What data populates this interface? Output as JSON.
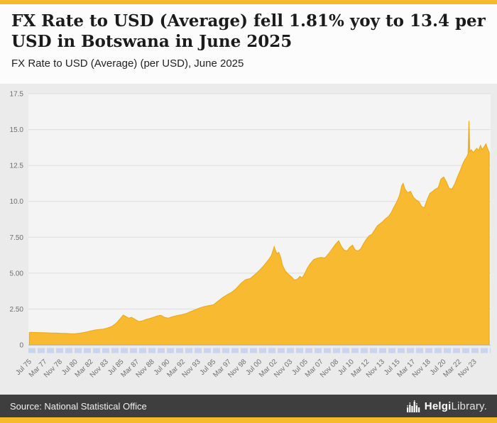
{
  "accent_color": "#F6BA2C",
  "header": {
    "title": "FX Rate to USD (Average) fell 1.81% yoy to 13.4 per USD in Botswana in June 2025",
    "subtitle": "FX Rate to USD (Average) (per USD), June 2025"
  },
  "footer": {
    "source": "Source: National Statistical Office",
    "logo_icon": "helgi-building-icon",
    "logo_helgi": "Helgi",
    "logo_library": "Library."
  },
  "chart_data": {
    "type": "area",
    "title": "FX Rate to USD (Average) (per USD), June 2025",
    "xlabel": "",
    "ylabel": "",
    "xlim": [
      1975.4,
      2025.6
    ],
    "ylim": [
      0,
      17.5
    ],
    "grid": true,
    "legend": "none",
    "yticks": [
      {
        "v": 0,
        "label": "0"
      },
      {
        "v": 2.5,
        "label": "2.50"
      },
      {
        "v": 5,
        "label": "5.00"
      },
      {
        "v": 7.5,
        "label": "7.50"
      },
      {
        "v": 10,
        "label": "10.0"
      },
      {
        "v": 12.5,
        "label": "12.5"
      },
      {
        "v": 15,
        "label": "15.0"
      },
      {
        "v": 17.5,
        "label": "17.5"
      }
    ],
    "xticks": [
      {
        "t": 1975.54,
        "label": "Jul 75"
      },
      {
        "t": 1977.21,
        "label": "Mar 77"
      },
      {
        "t": 1978.87,
        "label": "Nov 78"
      },
      {
        "t": 1980.54,
        "label": "Jul 80"
      },
      {
        "t": 1982.21,
        "label": "Mar 82"
      },
      {
        "t": 1983.87,
        "label": "Nov 83"
      },
      {
        "t": 1985.54,
        "label": "Jul 85"
      },
      {
        "t": 1987.21,
        "label": "Mar 87"
      },
      {
        "t": 1988.87,
        "label": "Nov 88"
      },
      {
        "t": 1990.54,
        "label": "Jul 90"
      },
      {
        "t": 1992.21,
        "label": "Mar 92"
      },
      {
        "t": 1993.87,
        "label": "Nov 93"
      },
      {
        "t": 1995.54,
        "label": "Jul 95"
      },
      {
        "t": 1997.21,
        "label": "Mar 97"
      },
      {
        "t": 1998.87,
        "label": "Nov 98"
      },
      {
        "t": 2000.54,
        "label": "Jul 00"
      },
      {
        "t": 2002.21,
        "label": "Mar 02"
      },
      {
        "t": 2003.87,
        "label": "Nov 03"
      },
      {
        "t": 2005.54,
        "label": "Jul 05"
      },
      {
        "t": 2007.21,
        "label": "Mar 07"
      },
      {
        "t": 2008.87,
        "label": "Nov 08"
      },
      {
        "t": 2010.54,
        "label": "Jul 10"
      },
      {
        "t": 2012.21,
        "label": "Mar 12"
      },
      {
        "t": 2013.87,
        "label": "Nov 13"
      },
      {
        "t": 2015.54,
        "label": "Jul 15"
      },
      {
        "t": 2017.21,
        "label": "Mar 17"
      },
      {
        "t": 2018.87,
        "label": "Nov 18"
      },
      {
        "t": 2020.54,
        "label": "Jul 20"
      },
      {
        "t": 2022.21,
        "label": "Mar 22"
      },
      {
        "t": 2023.87,
        "label": "Nov 23"
      }
    ],
    "series": [
      {
        "name": "FX Rate to USD (Average), Botswana (per USD)",
        "points": [
          [
            1975.5,
            0.87
          ],
          [
            1976.0,
            0.87
          ],
          [
            1976.5,
            0.86
          ],
          [
            1977.0,
            0.85
          ],
          [
            1977.5,
            0.84
          ],
          [
            1978.0,
            0.83
          ],
          [
            1978.5,
            0.83
          ],
          [
            1979.0,
            0.81
          ],
          [
            1979.5,
            0.8
          ],
          [
            1980.0,
            0.78
          ],
          [
            1980.5,
            0.78
          ],
          [
            1981.0,
            0.82
          ],
          [
            1981.5,
            0.87
          ],
          [
            1982.0,
            0.95
          ],
          [
            1982.5,
            1.03
          ],
          [
            1983.0,
            1.07
          ],
          [
            1983.5,
            1.1
          ],
          [
            1984.0,
            1.18
          ],
          [
            1984.5,
            1.3
          ],
          [
            1985.0,
            1.55
          ],
          [
            1985.4,
            1.85
          ],
          [
            1985.7,
            2.08
          ],
          [
            1986.0,
            1.97
          ],
          [
            1986.3,
            1.86
          ],
          [
            1986.6,
            1.93
          ],
          [
            1987.0,
            1.78
          ],
          [
            1987.4,
            1.63
          ],
          [
            1987.8,
            1.68
          ],
          [
            1988.2,
            1.78
          ],
          [
            1988.6,
            1.85
          ],
          [
            1989.0,
            1.93
          ],
          [
            1989.4,
            2.02
          ],
          [
            1989.8,
            2.06
          ],
          [
            1990.2,
            1.92
          ],
          [
            1990.6,
            1.87
          ],
          [
            1991.0,
            1.96
          ],
          [
            1991.5,
            2.04
          ],
          [
            1992.0,
            2.1
          ],
          [
            1992.5,
            2.18
          ],
          [
            1993.0,
            2.32
          ],
          [
            1993.5,
            2.44
          ],
          [
            1994.0,
            2.58
          ],
          [
            1994.5,
            2.68
          ],
          [
            1995.0,
            2.74
          ],
          [
            1995.5,
            2.8
          ],
          [
            1996.0,
            3.05
          ],
          [
            1996.5,
            3.3
          ],
          [
            1997.0,
            3.5
          ],
          [
            1997.5,
            3.68
          ],
          [
            1998.0,
            3.95
          ],
          [
            1998.5,
            4.3
          ],
          [
            1999.0,
            4.55
          ],
          [
            1999.5,
            4.63
          ],
          [
            2000.0,
            4.9
          ],
          [
            2000.5,
            5.2
          ],
          [
            2001.0,
            5.55
          ],
          [
            2001.5,
            5.95
          ],
          [
            2001.8,
            6.25
          ],
          [
            2002.1,
            6.85
          ],
          [
            2002.25,
            6.55
          ],
          [
            2002.4,
            6.35
          ],
          [
            2002.6,
            6.45
          ],
          [
            2002.8,
            6.1
          ],
          [
            2003.0,
            5.55
          ],
          [
            2003.3,
            5.15
          ],
          [
            2003.6,
            4.95
          ],
          [
            2004.0,
            4.72
          ],
          [
            2004.3,
            4.52
          ],
          [
            2004.6,
            4.58
          ],
          [
            2004.9,
            4.78
          ],
          [
            2005.1,
            4.65
          ],
          [
            2005.4,
            4.95
          ],
          [
            2005.7,
            5.35
          ],
          [
            2006.0,
            5.65
          ],
          [
            2006.4,
            5.95
          ],
          [
            2006.8,
            6.05
          ],
          [
            2007.2,
            6.1
          ],
          [
            2007.6,
            6.05
          ],
          [
            2008.0,
            6.35
          ],
          [
            2008.4,
            6.7
          ],
          [
            2008.8,
            7.05
          ],
          [
            2009.1,
            7.25
          ],
          [
            2009.4,
            6.85
          ],
          [
            2009.7,
            6.6
          ],
          [
            2010.0,
            6.55
          ],
          [
            2010.3,
            6.8
          ],
          [
            2010.6,
            6.95
          ],
          [
            2010.9,
            6.6
          ],
          [
            2011.2,
            6.55
          ],
          [
            2011.5,
            6.7
          ],
          [
            2011.8,
            7.05
          ],
          [
            2012.1,
            7.35
          ],
          [
            2012.4,
            7.6
          ],
          [
            2012.7,
            7.7
          ],
          [
            2013.0,
            8.0
          ],
          [
            2013.3,
            8.3
          ],
          [
            2013.6,
            8.45
          ],
          [
            2013.9,
            8.6
          ],
          [
            2014.2,
            8.8
          ],
          [
            2014.5,
            8.95
          ],
          [
            2014.8,
            9.2
          ],
          [
            2015.1,
            9.6
          ],
          [
            2015.4,
            9.95
          ],
          [
            2015.7,
            10.4
          ],
          [
            2015.95,
            11.1
          ],
          [
            2016.1,
            11.25
          ],
          [
            2016.3,
            10.85
          ],
          [
            2016.6,
            10.6
          ],
          [
            2016.9,
            10.7
          ],
          [
            2017.2,
            10.3
          ],
          [
            2017.5,
            10.1
          ],
          [
            2017.8,
            10.0
          ],
          [
            2018.1,
            9.65
          ],
          [
            2018.4,
            9.55
          ],
          [
            2018.7,
            10.1
          ],
          [
            2019.0,
            10.55
          ],
          [
            2019.3,
            10.7
          ],
          [
            2019.6,
            10.85
          ],
          [
            2019.9,
            10.95
          ],
          [
            2020.2,
            11.55
          ],
          [
            2020.5,
            11.7
          ],
          [
            2020.8,
            11.35
          ],
          [
            2021.1,
            10.9
          ],
          [
            2021.4,
            10.85
          ],
          [
            2021.7,
            11.2
          ],
          [
            2022.0,
            11.7
          ],
          [
            2022.3,
            12.15
          ],
          [
            2022.6,
            12.65
          ],
          [
            2022.8,
            12.9
          ],
          [
            2023.0,
            13.1
          ],
          [
            2023.15,
            13.3
          ],
          [
            2023.25,
            15.6
          ],
          [
            2023.35,
            13.45
          ],
          [
            2023.5,
            13.6
          ],
          [
            2023.7,
            13.4
          ],
          [
            2023.9,
            13.55
          ],
          [
            2024.1,
            13.7
          ],
          [
            2024.3,
            13.55
          ],
          [
            2024.5,
            13.9
          ],
          [
            2024.7,
            13.6
          ],
          [
            2024.9,
            13.8
          ],
          [
            2025.1,
            14.0
          ],
          [
            2025.25,
            13.7
          ],
          [
            2025.45,
            13.4
          ]
        ]
      }
    ],
    "colors": {
      "area": "#F7BA31",
      "area_stroke": "#EDA712",
      "plot_bg": "#f4f4f4",
      "grid": "#dcdcdc",
      "axis_text": "#6e6e6e",
      "navigator": "#c9d4ef"
    }
  }
}
